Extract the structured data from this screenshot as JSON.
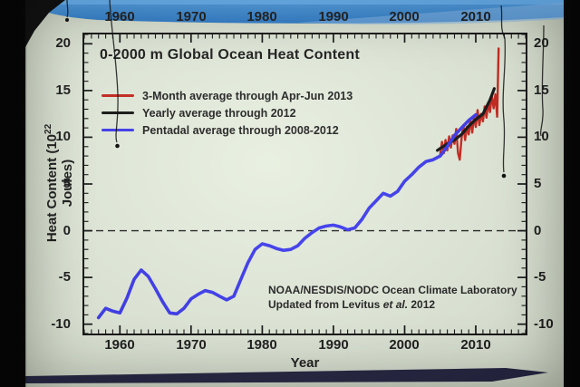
{
  "slide": {
    "title": "0-2000 m Global Ocean Heat Content",
    "attribution_line1": "NOAA/NESDIS/NODC Ocean Climate Laboratory",
    "attribution_line2_prefix": "Updated from Levitus ",
    "attribution_line2_italic": "et al.",
    "attribution_line2_suffix": " 2012",
    "x_axis_title": "Year",
    "y_axis_title_prefix": "Heat Content (10",
    "y_axis_title_sup": "22",
    "y_axis_title_suffix": " Joules)"
  },
  "colors": {
    "slide_bg": "#e7efdf",
    "band_blue_dark": "#2c77c2",
    "band_blue_light": "#7fb0e0",
    "bottom_bar": "#23233f",
    "frame": "#141414",
    "red_series": "#c8281e",
    "black_series": "#151515",
    "blue_series": "#3e3cf0"
  },
  "chart_data": {
    "type": "line",
    "title": "0-2000 m Global Ocean Heat Content",
    "xlabel": "Year",
    "ylabel": "Heat Content (10^22 Joules)",
    "xlim": [
      1955,
      2017
    ],
    "ylim": [
      -11,
      21
    ],
    "x_ticks_major": [
      1960,
      1970,
      1980,
      1990,
      2000,
      2010
    ],
    "y_ticks_major": [
      -10,
      -5,
      0,
      5,
      10,
      15,
      20
    ],
    "x_minor_step": 1,
    "y_minor_step": 1,
    "zero_line": {
      "value": 0,
      "style": "dashed"
    },
    "grid": "off",
    "legend_position": "top-left",
    "axis_labels_on_both_sides": true,
    "series": [
      {
        "name": "3-Month average through Apr-Jun 2013",
        "color": "#c8281e",
        "width": 2.4,
        "points": [
          [
            2005.0,
            8.1
          ],
          [
            2005.25,
            9.5
          ],
          [
            2005.5,
            8.3
          ],
          [
            2005.75,
            9.7
          ],
          [
            2006.0,
            8.6
          ],
          [
            2006.25,
            10.1
          ],
          [
            2006.5,
            8.9
          ],
          [
            2006.75,
            10.2
          ],
          [
            2007.0,
            9.3
          ],
          [
            2007.25,
            10.9
          ],
          [
            2007.5,
            8.3
          ],
          [
            2007.75,
            7.6
          ],
          [
            2008.0,
            9.9
          ],
          [
            2008.25,
            11.3
          ],
          [
            2008.5,
            9.7
          ],
          [
            2008.75,
            11.1
          ],
          [
            2009.0,
            10.3
          ],
          [
            2009.25,
            11.9
          ],
          [
            2009.5,
            10.5
          ],
          [
            2009.75,
            12.3
          ],
          [
            2010.0,
            11.1
          ],
          [
            2010.25,
            12.9
          ],
          [
            2010.5,
            11.3
          ],
          [
            2010.75,
            12.5
          ],
          [
            2011.0,
            11.7
          ],
          [
            2011.25,
            13.3
          ],
          [
            2011.5,
            12.1
          ],
          [
            2011.75,
            13.7
          ],
          [
            2012.0,
            12.7
          ],
          [
            2012.25,
            14.5
          ],
          [
            2012.5,
            13.1
          ],
          [
            2012.75,
            14.6
          ],
          [
            2013.0,
            12.2
          ],
          [
            2013.2,
            19.5
          ]
        ]
      },
      {
        "name": "Yearly average through 2012",
        "color": "#151515",
        "width": 3.2,
        "points": [
          [
            2004.6,
            8.6
          ],
          [
            2005,
            8.8
          ],
          [
            2006,
            9.3
          ],
          [
            2007,
            9.7
          ],
          [
            2008,
            10.3
          ],
          [
            2009,
            11.2
          ],
          [
            2010,
            11.9
          ],
          [
            2011,
            12.5
          ],
          [
            2012,
            14.0
          ],
          [
            2012.6,
            15.2
          ]
        ]
      },
      {
        "name": "Pentadal average through 2008-2012",
        "color": "#3e3cf0",
        "width": 3.6,
        "points": [
          [
            1957,
            -9.3
          ],
          [
            1958,
            -8.3
          ],
          [
            1959,
            -8.6
          ],
          [
            1960,
            -8.8
          ],
          [
            1961,
            -7.2
          ],
          [
            1962,
            -5.2
          ],
          [
            1963,
            -4.2
          ],
          [
            1964,
            -4.9
          ],
          [
            1965,
            -6.2
          ],
          [
            1966,
            -7.6
          ],
          [
            1967,
            -8.8
          ],
          [
            1968,
            -8.9
          ],
          [
            1969,
            -8.3
          ],
          [
            1970,
            -7.3
          ],
          [
            1971,
            -6.8
          ],
          [
            1972,
            -6.4
          ],
          [
            1973,
            -6.6
          ],
          [
            1974,
            -7.0
          ],
          [
            1975,
            -7.4
          ],
          [
            1976,
            -7.0
          ],
          [
            1977,
            -5.2
          ],
          [
            1978,
            -3.4
          ],
          [
            1979,
            -2.0
          ],
          [
            1980,
            -1.4
          ],
          [
            1981,
            -1.6
          ],
          [
            1982,
            -1.9
          ],
          [
            1983,
            -2.1
          ],
          [
            1984,
            -2.0
          ],
          [
            1985,
            -1.6
          ],
          [
            1986,
            -0.8
          ],
          [
            1987,
            -0.2
          ],
          [
            1988,
            0.3
          ],
          [
            1989,
            0.5
          ],
          [
            1990,
            0.6
          ],
          [
            1991,
            0.4
          ],
          [
            1992,
            0.1
          ],
          [
            1993,
            0.3
          ],
          [
            1994,
            1.2
          ],
          [
            1995,
            2.4
          ],
          [
            1996,
            3.2
          ],
          [
            1997,
            4.0
          ],
          [
            1998,
            3.7
          ],
          [
            1999,
            4.2
          ],
          [
            2000,
            5.3
          ],
          [
            2001,
            6.0
          ],
          [
            2002,
            6.8
          ],
          [
            2003,
            7.4
          ],
          [
            2004,
            7.6
          ],
          [
            2005,
            8.0
          ],
          [
            2006,
            9.0
          ],
          [
            2007,
            10.2
          ],
          [
            2008,
            11.0
          ],
          [
            2009,
            11.8
          ],
          [
            2010,
            12.4
          ]
        ]
      }
    ]
  }
}
